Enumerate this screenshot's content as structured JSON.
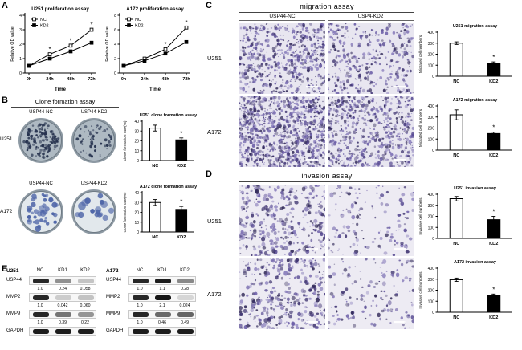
{
  "panel_labels": {
    "A": "A",
    "B": "B",
    "C": "C",
    "D": "D",
    "E": "E"
  },
  "colors": {
    "bar_nc_fill": "#ffffff",
    "bar_kd2_fill": "#000000",
    "micro_bg_migration": "#e8e6f0",
    "micro_bg_invasion": "#edebf3",
    "micro_dot_palette": [
      "#3f3470",
      "#544790",
      "#6a5ca6",
      "#8276b8",
      "#2e2656"
    ],
    "dish_u251_fill": "#aeb9c2",
    "dish_a172_fill": "#e2e8ec",
    "dish_u251_colony": "#26324e",
    "dish_a172_colony": "#4f66a8"
  },
  "panelB": {
    "header": "Clone formation assay",
    "rows": [
      {
        "cell_line": "U251",
        "dishes": [
          {
            "label": "USP44-NC",
            "colonies": "many-small"
          },
          {
            "label": "USP44-KD2",
            "colonies": "few-small"
          }
        ]
      },
      {
        "cell_line": "A172",
        "dishes": [
          {
            "label": "USP44-NC",
            "colonies": "many-large"
          },
          {
            "label": "USP44-KD2",
            "colonies": "few-large"
          }
        ]
      }
    ]
  },
  "panelC": {
    "header": "migration assay",
    "col_labels": [
      "USP44-NC",
      "USP4-KD2"
    ],
    "row_labels": [
      "U251",
      "A172"
    ]
  },
  "panelD": {
    "header": "invasion assay",
    "row_labels": [
      "U251",
      "A172"
    ]
  },
  "micrographs": [
    {
      "assay": "migration",
      "cell_line": "U251",
      "condition": "USP44-NC",
      "density": "high"
    },
    {
      "assay": "migration",
      "cell_line": "U251",
      "condition": "USP4-KD2",
      "density": "medium"
    },
    {
      "assay": "migration",
      "cell_line": "A172",
      "condition": "USP44-NC",
      "density": "very-high"
    },
    {
      "assay": "migration",
      "cell_line": "A172",
      "condition": "USP4-KD2",
      "density": "high"
    },
    {
      "assay": "invasion",
      "cell_line": "U251",
      "condition": "USP44-NC",
      "density": "medium"
    },
    {
      "assay": "invasion",
      "cell_line": "U251",
      "condition": "USP4-KD2",
      "density": "low"
    },
    {
      "assay": "invasion",
      "cell_line": "A172",
      "condition": "USP44-NC",
      "density": "medium"
    },
    {
      "assay": "invasion",
      "cell_line": "A172",
      "condition": "USP4-KD2",
      "density": "low"
    }
  ],
  "panelE": {
    "blots": [
      {
        "cell_line": "U251",
        "lanes": [
          "NC",
          "KD1",
          "KD2"
        ],
        "rows": [
          {
            "protein": "USP44",
            "values": [
              "1.0",
              "0.24",
              "0.058"
            ]
          },
          {
            "protein": "MMP2",
            "values": [
              "1.0",
              "0.042",
              "0.060"
            ]
          },
          {
            "protein": "MMP9",
            "values": [
              "1.0",
              "0.39",
              "0.22"
            ]
          },
          {
            "protein": "GAPDH",
            "values": null
          }
        ]
      },
      {
        "cell_line": "A172",
        "lanes": [
          "NC",
          "KD1",
          "KD2"
        ],
        "rows": [
          {
            "protein": "USP44",
            "values": [
              "1.0",
              "1.1",
              "0.28"
            ]
          },
          {
            "protein": "MMP2",
            "values": [
              "1.0",
              "2.1",
              "0.024"
            ]
          },
          {
            "protein": "MMP9",
            "values": [
              "1.0",
              "0.46",
              "0.49"
            ]
          },
          {
            "protein": "GAPDH",
            "values": null
          }
        ]
      }
    ]
  },
  "chart_data": [
    {
      "id": "u251-proliferation",
      "type": "line",
      "title": "U251 proliferation assay",
      "xlabel": "Time",
      "ylabel": "Relative OD value",
      "categories": [
        "0h",
        "24h",
        "48h",
        "72h"
      ],
      "ylim": [
        0,
        4
      ],
      "yticks": [
        0,
        1,
        2,
        3,
        4
      ],
      "series": [
        {
          "name": "NC",
          "values": [
            0.5,
            1.3,
            1.9,
            3.0
          ]
        },
        {
          "name": "KD2",
          "values": [
            0.5,
            1.0,
            1.5,
            2.1
          ]
        }
      ],
      "sig_x": [
        1,
        2,
        3
      ],
      "legend_position": "upper-left",
      "grid": false
    },
    {
      "id": "a172-proliferation",
      "type": "line",
      "title": "A172 proliferation assay",
      "xlabel": "Time",
      "ylabel": "Relative OD value",
      "categories": [
        "0h",
        "24h",
        "48h",
        "72h"
      ],
      "ylim": [
        0,
        8
      ],
      "yticks": [
        0,
        2,
        4,
        6,
        8
      ],
      "series": [
        {
          "name": "NC",
          "values": [
            1.0,
            2.0,
            3.3,
            6.3
          ]
        },
        {
          "name": "KD2",
          "values": [
            1.0,
            1.7,
            2.7,
            4.3
          ]
        }
      ],
      "sig_x": [
        2,
        3
      ],
      "legend_position": "upper-left",
      "grid": false
    },
    {
      "id": "u251-clone-formation",
      "type": "bar",
      "title": "U251 clone formation assay",
      "ylabel": "clone formation rate(%)",
      "categories": [
        "NC",
        "KD2"
      ],
      "ylim": [
        0,
        40
      ],
      "yticks": [
        0,
        10,
        20,
        30,
        40
      ],
      "values": [
        33,
        21
      ],
      "errors": [
        3,
        2
      ],
      "sig": [
        false,
        true
      ],
      "grid": false
    },
    {
      "id": "a172-clone-formation",
      "type": "bar",
      "title": "A172 clone formation assay",
      "ylabel": "clone formation rate(%)",
      "categories": [
        "NC",
        "KD2"
      ],
      "ylim": [
        0,
        40
      ],
      "yticks": [
        0,
        10,
        20,
        30,
        40
      ],
      "values": [
        30,
        23
      ],
      "errors": [
        3,
        3
      ],
      "sig": [
        false,
        true
      ],
      "grid": false
    },
    {
      "id": "u251-migration",
      "type": "bar",
      "title": "U251 migration assay",
      "ylabel": "Migrated cell numbers",
      "categories": [
        "NC",
        "KD2"
      ],
      "ylim": [
        0,
        400
      ],
      "yticks": [
        0,
        100,
        200,
        300,
        400
      ],
      "values": [
        300,
        120
      ],
      "errors": [
        12,
        10
      ],
      "sig": [
        false,
        true
      ],
      "grid": false
    },
    {
      "id": "a172-migration",
      "type": "bar",
      "title": "A172 migration assay",
      "ylabel": "Migrated cell numbers",
      "categories": [
        "NC",
        "KD2"
      ],
      "ylim": [
        0,
        400
      ],
      "yticks": [
        0,
        100,
        200,
        300,
        400
      ],
      "values": [
        320,
        150
      ],
      "errors": [
        45,
        12
      ],
      "sig": [
        false,
        true
      ],
      "grid": false
    },
    {
      "id": "u251-invasion",
      "type": "bar",
      "title": "U251 invasion assay",
      "ylabel": "Invasive cell numbers",
      "categories": [
        "NC",
        "KD2"
      ],
      "ylim": [
        0,
        400
      ],
      "yticks": [
        0,
        100,
        200,
        300,
        400
      ],
      "values": [
        360,
        170
      ],
      "errors": [
        20,
        30
      ],
      "sig": [
        false,
        true
      ],
      "grid": false
    },
    {
      "id": "a172-invasion",
      "type": "bar",
      "title": "A172 invasion assay",
      "ylabel": "Invasive cell numbers",
      "categories": [
        "NC",
        "KD2"
      ],
      "ylim": [
        0,
        400
      ],
      "yticks": [
        0,
        100,
        200,
        300,
        400
      ],
      "values": [
        295,
        150
      ],
      "errors": [
        15,
        15
      ],
      "sig": [
        false,
        true
      ],
      "grid": false
    }
  ]
}
